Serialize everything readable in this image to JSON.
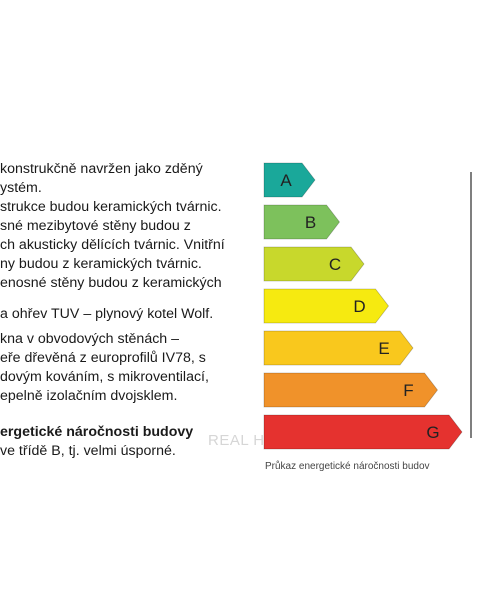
{
  "description": {
    "paragraph1": [
      "konstrukčně navržen jako zděný",
      "ystém."
    ],
    "paragraph2": [
      "strukce budou keramických tvárnic."
    ],
    "paragraph3": [
      "sné mezibytové stěny budou z",
      "ch akusticky dělících tvárnic. Vnitřní",
      "ny budou z keramických tvárnic.",
      "enosné stěny budou z keramických"
    ],
    "paragraph4": [
      "a ohřev TUV – plynový kotel Wolf."
    ],
    "paragraph5": [
      "kna v obvodových stěnách –",
      "eře dřevěná z europrofilů IV78, s",
      "dovým kováním, s mikroventilací,",
      "epelně izolačním dvojsklem."
    ],
    "paragraph6": [
      "ergetické náročnosti budovy",
      "ve třídě B, tj. velmi úsporné."
    ]
  },
  "energy_chart": {
    "classes": [
      {
        "label": "A",
        "color": "#1aa89a"
      },
      {
        "label": "B",
        "color": "#7dc15c"
      },
      {
        "label": "C",
        "color": "#c8d82c"
      },
      {
        "label": "D",
        "color": "#f6ea10"
      },
      {
        "label": "E",
        "color": "#f9c81d"
      },
      {
        "label": "F",
        "color": "#f0922a"
      },
      {
        "label": "G",
        "color": "#e5322f"
      }
    ],
    "caption": "Průkaz energetické náročnosti budov"
  },
  "watermark": "REAL HOME"
}
